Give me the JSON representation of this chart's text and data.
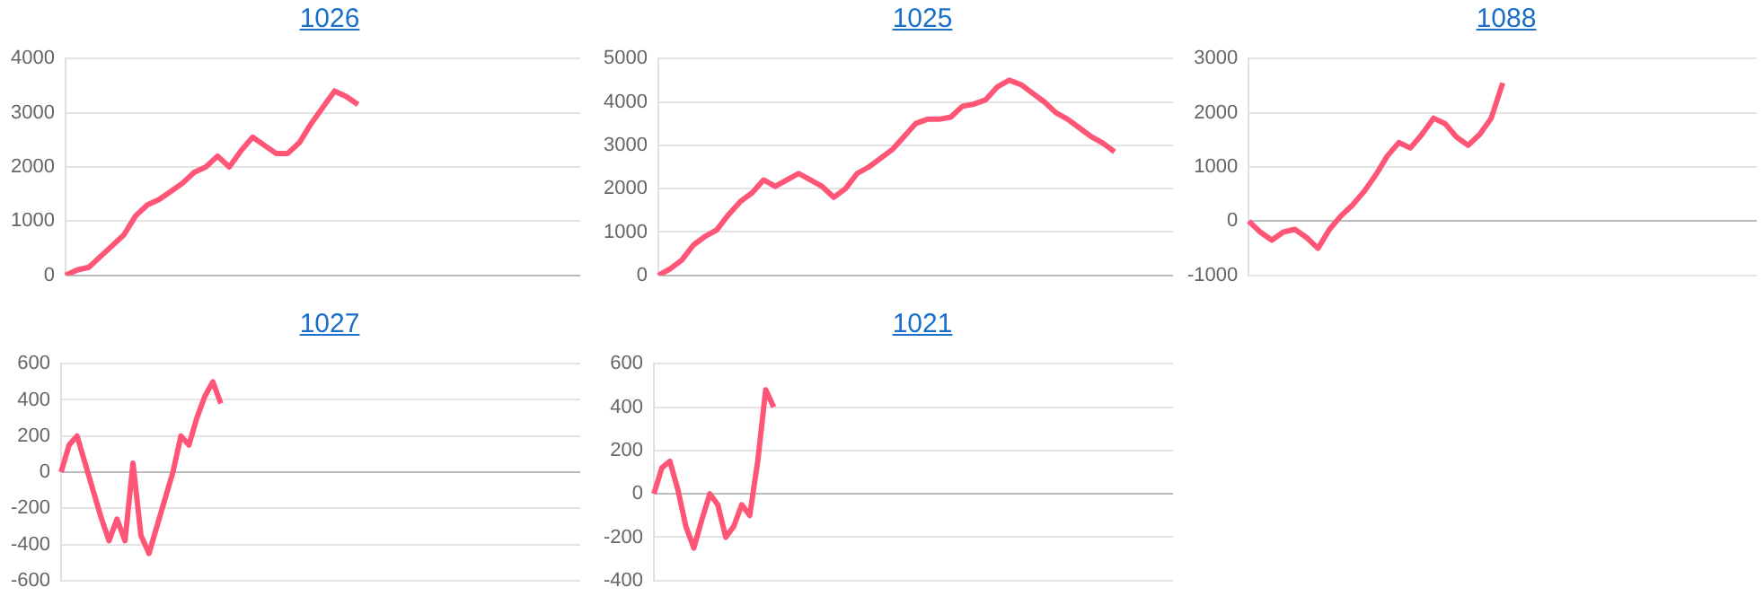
{
  "chart_data": [
    {
      "type": "line",
      "title": "1026",
      "tick_labels": "y",
      "grid": "y",
      "legend": false,
      "marker": "none",
      "ylim": [
        0,
        4000
      ],
      "yticks": [
        0,
        1000,
        2000,
        3000,
        4000
      ],
      "categories": [
        null,
        null,
        null,
        null,
        null,
        null,
        null,
        null,
        null,
        null,
        null,
        null,
        null,
        null,
        null,
        null,
        null,
        null,
        null,
        null,
        null,
        null,
        null,
        null,
        null,
        null,
        null,
        null,
        null,
        null,
        null,
        null,
        null,
        null,
        null,
        null,
        null,
        null,
        null,
        null,
        null,
        null,
        null,
        null,
        null
      ],
      "series": [
        {
          "color": "#ff5577",
          "values": [
            0,
            100,
            150,
            350,
            550,
            750,
            1100,
            1300,
            1400,
            1550,
            1700,
            1900,
            2000,
            2200,
            2000,
            2300,
            2550,
            2400,
            2250,
            2250,
            2450,
            2800,
            3100,
            3400,
            3300,
            3150,
            null,
            null,
            null,
            null,
            null,
            null,
            null,
            null,
            null,
            null,
            null,
            null,
            null,
            null,
            null,
            null,
            null,
            null,
            null
          ]
        }
      ]
    },
    {
      "type": "line",
      "title": "1025",
      "tick_labels": "y",
      "grid": "y",
      "legend": false,
      "marker": "none",
      "ylim": [
        0,
        5000
      ],
      "yticks": [
        0,
        1000,
        2000,
        3000,
        4000,
        5000
      ],
      "categories": [
        null,
        null,
        null,
        null,
        null,
        null,
        null,
        null,
        null,
        null,
        null,
        null,
        null,
        null,
        null,
        null,
        null,
        null,
        null,
        null,
        null,
        null,
        null,
        null,
        null,
        null,
        null,
        null,
        null,
        null,
        null,
        null,
        null,
        null,
        null,
        null,
        null,
        null,
        null,
        null,
        null,
        null,
        null,
        null,
        null
      ],
      "series": [
        {
          "color": "#ff5577",
          "values": [
            0,
            150,
            350,
            700,
            900,
            1050,
            1400,
            1700,
            1900,
            2200,
            2050,
            2200,
            2350,
            2200,
            2050,
            1800,
            2000,
            2350,
            2500,
            2700,
            2900,
            3200,
            3500,
            3600,
            3600,
            3650,
            3900,
            3950,
            4050,
            4350,
            4500,
            4400,
            4200,
            4000,
            3750,
            3600,
            3400,
            3200,
            3050,
            2850,
            null,
            null,
            null,
            null,
            null
          ]
        }
      ]
    },
    {
      "type": "line",
      "title": "1088",
      "tick_labels": "y",
      "grid": "y",
      "legend": false,
      "marker": "none",
      "ylim": [
        -1000,
        3000
      ],
      "yticks": [
        -1000,
        0,
        1000,
        2000,
        3000
      ],
      "categories": [
        null,
        null,
        null,
        null,
        null,
        null,
        null,
        null,
        null,
        null,
        null,
        null,
        null,
        null,
        null,
        null,
        null,
        null,
        null,
        null,
        null,
        null,
        null,
        null,
        null,
        null,
        null,
        null,
        null,
        null,
        null,
        null,
        null,
        null,
        null,
        null,
        null,
        null,
        null,
        null,
        null,
        null,
        null,
        null,
        null
      ],
      "series": [
        {
          "color": "#ff5577",
          "values": [
            0,
            -200,
            -350,
            -200,
            -150,
            -300,
            -500,
            -150,
            100,
            300,
            550,
            850,
            1200,
            1450,
            1350,
            1600,
            1900,
            1800,
            1550,
            1400,
            1600,
            1900,
            2550,
            null,
            null,
            null,
            null,
            null,
            null,
            null,
            null,
            null,
            null,
            null,
            null,
            null,
            null,
            null,
            null,
            null,
            null,
            null,
            null,
            null,
            null
          ]
        }
      ]
    },
    {
      "type": "line",
      "title": "1027",
      "tick_labels": "y",
      "grid": "y",
      "legend": false,
      "marker": "none",
      "ylim": [
        -600,
        600
      ],
      "yticks": [
        -600,
        -400,
        -200,
        0,
        200,
        400,
        600
      ],
      "categories": [
        null,
        null,
        null,
        null,
        null,
        null,
        null,
        null,
        null,
        null,
        null,
        null,
        null,
        null,
        null,
        null,
        null,
        null,
        null,
        null,
        null,
        null,
        null,
        null,
        null,
        null,
        null,
        null,
        null,
        null,
        null,
        null,
        null,
        null,
        null,
        null,
        null,
        null,
        null,
        null,
        null,
        null,
        null,
        null,
        null,
        null,
        null,
        null,
        null,
        null,
        null,
        null,
        null,
        null,
        null,
        null,
        null,
        null,
        null,
        null,
        null,
        null,
        null,
        null,
        null,
        null
      ],
      "series": [
        {
          "color": "#ff5577",
          "values": [
            0,
            150,
            200,
            50,
            -100,
            -250,
            -380,
            -260,
            -380,
            50,
            -350,
            -450,
            -300,
            -150,
            0,
            200,
            150,
            300,
            420,
            500,
            380,
            null,
            null,
            null,
            null,
            null,
            null,
            null,
            null,
            null,
            null,
            null,
            null,
            null,
            null,
            null,
            null,
            null,
            null,
            null,
            null,
            null,
            null,
            null,
            null,
            null,
            null,
            null,
            null,
            null,
            null,
            null,
            null,
            null,
            null,
            null,
            null,
            null,
            null,
            null,
            null,
            null,
            null,
            null,
            null,
            null
          ]
        }
      ]
    },
    {
      "type": "line",
      "title": "1021",
      "tick_labels": "y",
      "grid": "y",
      "legend": false,
      "marker": "none",
      "ylim": [
        -400,
        600
      ],
      "yticks": [
        -400,
        -200,
        0,
        200,
        400,
        600
      ],
      "categories": [
        null,
        null,
        null,
        null,
        null,
        null,
        null,
        null,
        null,
        null,
        null,
        null,
        null,
        null,
        null,
        null,
        null,
        null,
        null,
        null,
        null,
        null,
        null,
        null,
        null,
        null,
        null,
        null,
        null,
        null,
        null,
        null,
        null,
        null,
        null,
        null,
        null,
        null,
        null,
        null,
        null,
        null,
        null,
        null,
        null,
        null,
        null,
        null,
        null,
        null,
        null,
        null,
        null,
        null,
        null,
        null,
        null,
        null,
        null,
        null,
        null,
        null,
        null,
        null,
        null,
        null
      ],
      "series": [
        {
          "color": "#ff5577",
          "values": [
            0,
            120,
            150,
            20,
            -150,
            -250,
            -120,
            0,
            -50,
            -200,
            -150,
            -50,
            -100,
            150,
            480,
            400,
            null,
            null,
            null,
            null,
            null,
            null,
            null,
            null,
            null,
            null,
            null,
            null,
            null,
            null,
            null,
            null,
            null,
            null,
            null,
            null,
            null,
            null,
            null,
            null,
            null,
            null,
            null,
            null,
            null,
            null,
            null,
            null,
            null,
            null,
            null,
            null,
            null,
            null,
            null,
            null,
            null,
            null,
            null,
            null,
            null,
            null,
            null,
            null,
            null,
            null
          ]
        }
      ]
    }
  ]
}
